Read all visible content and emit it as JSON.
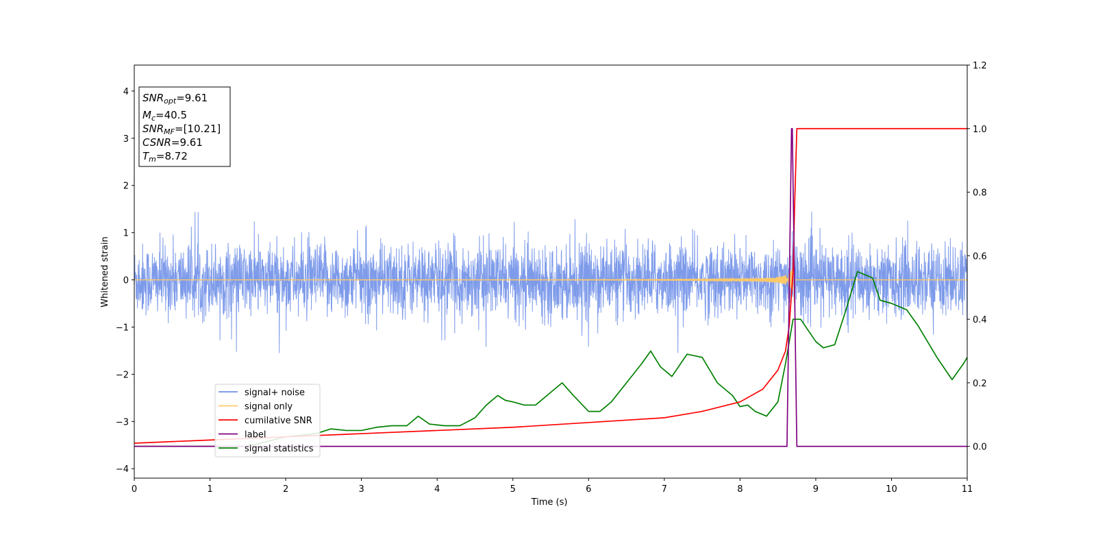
{
  "chart_data": {
    "type": "line",
    "xlabel": "Time (s)",
    "ylabel": "Whitened strain",
    "xlim": [
      0,
      11
    ],
    "ylim_left": [
      -4.2,
      4.55
    ],
    "ylim_right": [
      -0.1,
      1.2
    ],
    "x_ticks": [
      0,
      1,
      2,
      3,
      4,
      5,
      6,
      7,
      8,
      9,
      10,
      11
    ],
    "y_left_ticks": [
      4,
      3,
      2,
      1,
      0,
      -1,
      -2,
      -3,
      -4
    ],
    "y_left_tick_labels": [
      "4",
      "3",
      "2",
      "1",
      "0",
      "−1",
      "−2",
      "−3",
      "−4"
    ],
    "y_right_ticks": [
      1.2,
      1.0,
      0.8,
      0.6,
      0.4,
      0.2,
      0.0
    ],
    "y_right_tick_labels": [
      "1.2",
      "1.0",
      "0.8",
      "0.6",
      "0.4",
      "0.2",
      "0.0"
    ],
    "info_box": [
      {
        "main": "SNR",
        "sub": "opt",
        "value": "=9.61"
      },
      {
        "main": "M",
        "sub": "c",
        "value": "=40.5"
      },
      {
        "main": "SNR",
        "sub": "MF",
        "value": "=[10.21]"
      },
      {
        "main": "CSNR",
        "sub": "",
        "value": "=9.61"
      },
      {
        "main": "T",
        "sub": "m",
        "value": "=8.72"
      }
    ],
    "legend": {
      "placement": "lower-left",
      "entries": [
        {
          "label": "signal+ noise",
          "color": "#7090e8"
        },
        {
          "label": "signal only",
          "color": "#ffc966"
        },
        {
          "label": "cumilative SNR",
          "color": "#ff0000"
        },
        {
          "label": "label",
          "color": "#800080"
        },
        {
          "label": "signal statistics",
          "color": "#008000"
        }
      ]
    },
    "series": [
      {
        "name": "signal+ noise",
        "axis": "left",
        "color": "#7090e8",
        "description_values": {
          "x_range": [
            0,
            11
          ],
          "amplitude_typical": 0.9,
          "max": 1.65,
          "min": -1.55
        }
      },
      {
        "name": "signal only",
        "axis": "left",
        "color": "#ffc966",
        "merger_time": 8.72,
        "peak_amplitude": 0.6
      },
      {
        "name": "cumilative SNR",
        "axis": "right",
        "color": "#ff0000",
        "x": [
          0,
          1,
          2,
          3,
          4,
          5,
          6,
          7,
          7.5,
          8,
          8.3,
          8.5,
          8.6,
          8.65,
          8.7,
          8.72,
          8.75,
          9,
          10,
          11
        ],
        "y": [
          0.01,
          0.02,
          0.03,
          0.04,
          0.05,
          0.06,
          0.075,
          0.09,
          0.11,
          0.14,
          0.18,
          0.24,
          0.3,
          0.38,
          0.55,
          0.75,
          1.0,
          1.0,
          1.0,
          1.0
        ]
      },
      {
        "name": "label",
        "axis": "right",
        "color": "#800080",
        "x": [
          0,
          8.62,
          8.68,
          8.69,
          8.75,
          11
        ],
        "y": [
          0,
          0,
          1.0,
          1.0,
          0,
          0
        ]
      },
      {
        "name": "signal statistics",
        "axis": "right",
        "color": "#008000",
        "x": [
          0,
          1.5,
          2,
          2.4,
          2.6,
          2.8,
          3.0,
          3.2,
          3.4,
          3.6,
          3.75,
          3.9,
          4.1,
          4.3,
          4.5,
          4.65,
          4.8,
          4.9,
          5.0,
          5.15,
          5.3,
          5.5,
          5.65,
          5.8,
          6.0,
          6.15,
          6.3,
          6.5,
          6.7,
          6.82,
          6.95,
          7.1,
          7.3,
          7.5,
          7.7,
          7.9,
          8.0,
          8.1,
          8.2,
          8.35,
          8.5,
          8.6,
          8.7,
          8.8,
          9.0,
          9.1,
          9.25,
          9.4,
          9.55,
          9.75,
          9.85,
          10.0,
          10.2,
          10.35,
          10.6,
          10.8,
          10.95,
          11.0
        ],
        "y": [
          0.0,
          0.0,
          0.03,
          0.04,
          0.055,
          0.05,
          0.05,
          0.06,
          0.065,
          0.065,
          0.095,
          0.07,
          0.065,
          0.065,
          0.09,
          0.13,
          0.16,
          0.145,
          0.14,
          0.13,
          0.13,
          0.17,
          0.2,
          0.16,
          0.11,
          0.11,
          0.14,
          0.2,
          0.26,
          0.3,
          0.25,
          0.22,
          0.29,
          0.28,
          0.2,
          0.16,
          0.125,
          0.13,
          0.11,
          0.095,
          0.14,
          0.26,
          0.4,
          0.4,
          0.33,
          0.31,
          0.32,
          0.43,
          0.55,
          0.53,
          0.46,
          0.45,
          0.43,
          0.38,
          0.28,
          0.21,
          0.26,
          0.28
        ]
      }
    ]
  }
}
